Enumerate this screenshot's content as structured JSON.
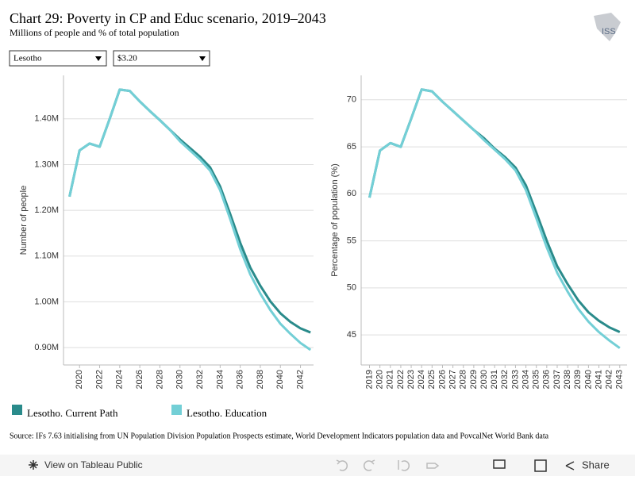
{
  "header": {
    "title": "Chart 29: Poverty in CP and Educ scenario, 2019–2043",
    "subtitle": "Millions of people and % of total population",
    "logo": "ISS"
  },
  "filters": [
    "Lesotho",
    "$3.20"
  ],
  "source": "Source: IFs 7.63 initialising from UN Population Division Population Prospects estimate, World Development Indicators population data and PovcalNet World Bank data",
  "toolbar": {
    "view": "View on Tableau Public",
    "share": "Share"
  },
  "chart_data": [
    {
      "type": "line",
      "ylabel": "Number of people",
      "x": [
        2019,
        2020,
        2021,
        2022,
        2023,
        2024,
        2025,
        2026,
        2027,
        2028,
        2029,
        2030,
        2031,
        2032,
        2033,
        2034,
        2035,
        2036,
        2037,
        2038,
        2039,
        2040,
        2041,
        2042,
        2043
      ],
      "xlim": [
        2018.4,
        2043.3
      ],
      "xticks": [
        2020,
        2022,
        2024,
        2026,
        2028,
        2030,
        2032,
        2034,
        2036,
        2038,
        2040,
        2042
      ],
      "ylim": [
        862000,
        1495000
      ],
      "yticks": [
        {
          "value": 900000,
          "label": "0.90M"
        },
        {
          "value": 1000000,
          "label": "1.00M"
        },
        {
          "value": 1100000,
          "label": "1.10M"
        },
        {
          "value": 1200000,
          "label": "1.20M"
        },
        {
          "value": 1300000,
          "label": "1.30M"
        },
        {
          "value": 1400000,
          "label": "1.40M"
        }
      ],
      "grid": true,
      "series": [
        {
          "name": "Lesotho. Current Path",
          "color": "#2a8b8b",
          "values": [
            1230000,
            1331000,
            1346000,
            1339000,
            1400000,
            1464000,
            1461000,
            1438000,
            1417000,
            1397000,
            1376000,
            1355000,
            1336000,
            1317000,
            1294000,
            1252000,
            1192000,
            1129000,
            1075000,
            1035000,
            1001000,
            975000,
            956000,
            942000,
            933000
          ]
        },
        {
          "name": "Lesotho. Education",
          "color": "#73cfd6",
          "values": [
            1230000,
            1331000,
            1346000,
            1339000,
            1400000,
            1464000,
            1461000,
            1438000,
            1417000,
            1397000,
            1376000,
            1351000,
            1331000,
            1311000,
            1287000,
            1244000,
            1181000,
            1115000,
            1060000,
            1018000,
            982000,
            952000,
            930000,
            910000,
            895000
          ]
        }
      ]
    },
    {
      "type": "line",
      "ylabel": "Percentage of population (%)",
      "x": [
        2019,
        2020,
        2021,
        2022,
        2023,
        2024,
        2025,
        2026,
        2027,
        2028,
        2029,
        2030,
        2031,
        2032,
        2033,
        2034,
        2035,
        2036,
        2037,
        2038,
        2039,
        2040,
        2041,
        2042,
        2043
      ],
      "xlim": [
        2018.2,
        2043.7
      ],
      "xticks": [
        2019,
        2020,
        2021,
        2022,
        2023,
        2024,
        2025,
        2026,
        2027,
        2028,
        2029,
        2030,
        2031,
        2032,
        2033,
        2034,
        2035,
        2036,
        2037,
        2038,
        2039,
        2040,
        2041,
        2042,
        2043
      ],
      "ylim": [
        41.8,
        72.6
      ],
      "yticks": [
        45,
        50,
        55,
        60,
        65,
        70
      ],
      "grid": true,
      "series": [
        {
          "color": "#2a8b8b",
          "values": [
            59.6,
            64.6,
            65.4,
            65.0,
            68.0,
            71.1,
            70.9,
            69.8,
            68.8,
            67.8,
            66.8,
            65.9,
            64.8,
            63.9,
            62.8,
            60.9,
            58.0,
            55.0,
            52.3,
            50.4,
            48.7,
            47.4,
            46.5,
            45.8,
            45.3
          ]
        },
        {
          "color": "#73cfd6",
          "values": [
            59.6,
            64.6,
            65.4,
            65.0,
            68.0,
            71.1,
            70.9,
            69.8,
            68.8,
            67.8,
            66.8,
            65.7,
            64.7,
            63.7,
            62.5,
            60.4,
            57.4,
            54.3,
            51.6,
            49.6,
            47.8,
            46.4,
            45.3,
            44.4,
            43.6
          ]
        }
      ]
    }
  ]
}
